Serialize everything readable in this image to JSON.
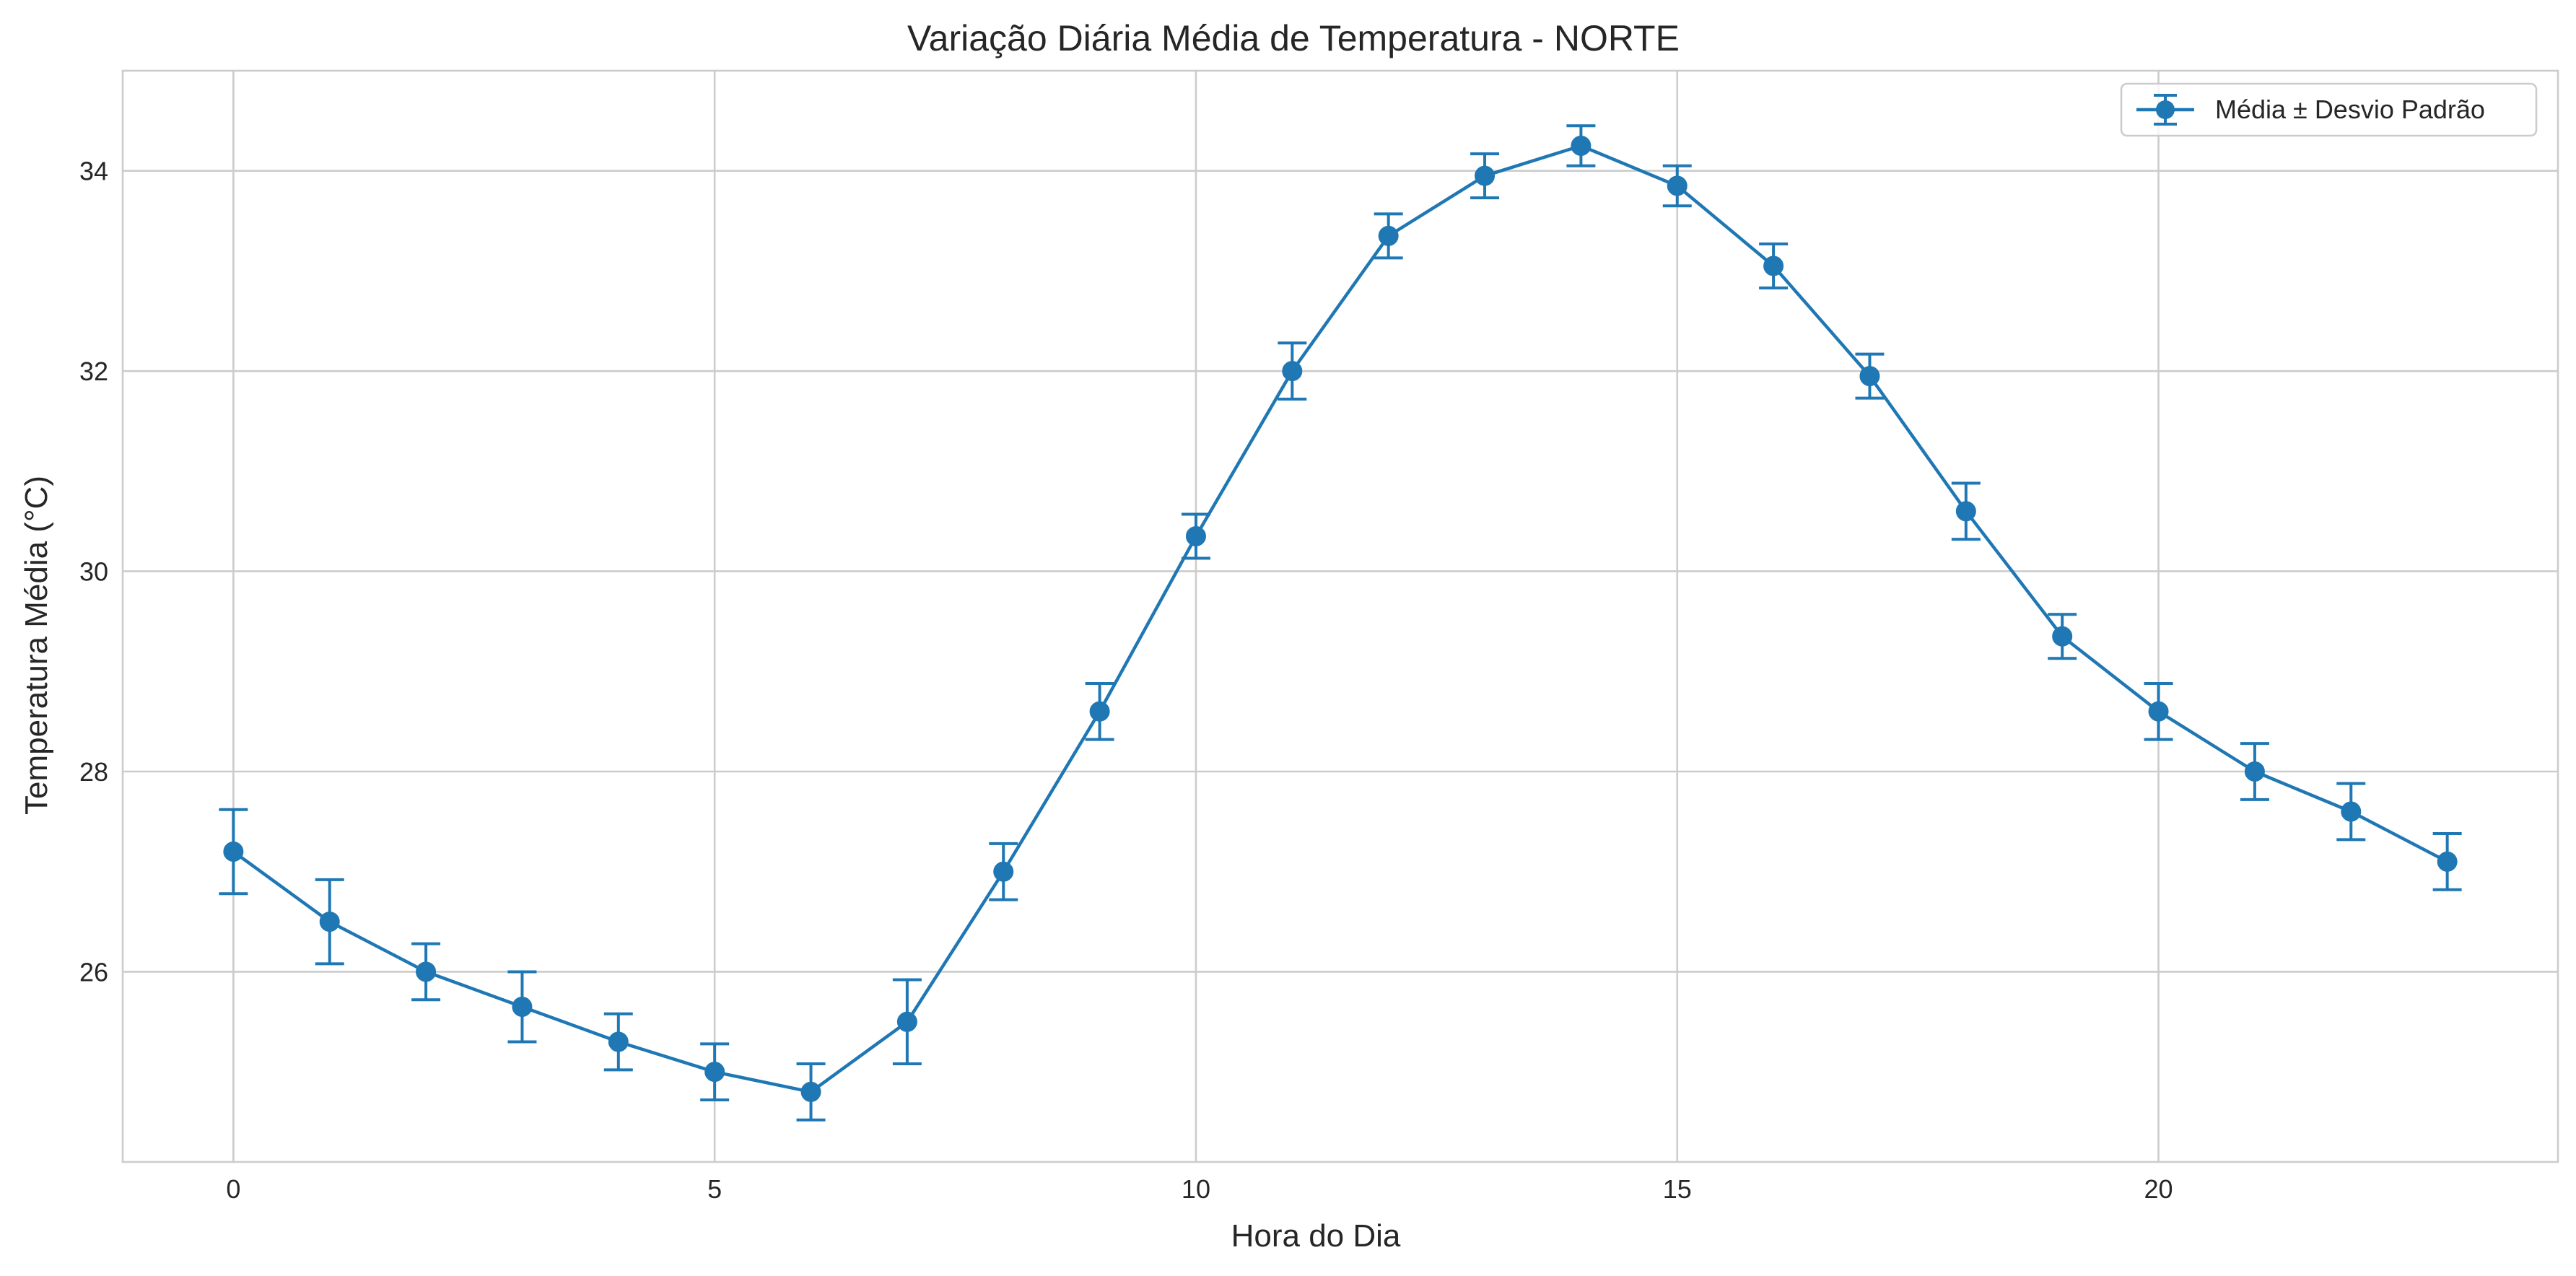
{
  "chart_data": {
    "type": "line",
    "title": "Variação Diária Média de Temperatura - NORTE",
    "xlabel": "Hora do Dia",
    "ylabel": "Temperatura Média (°C)",
    "xlim": [
      -1.15,
      24.15
    ],
    "ylim": [
      24.1,
      35.0
    ],
    "xticks": [
      0,
      5,
      10,
      15,
      20
    ],
    "yticks": [
      26,
      28,
      30,
      32,
      34
    ],
    "grid": true,
    "legend_position": "top-right",
    "series": [
      {
        "name": "Média ± Desvio Padrão",
        "color": "#1f77b4",
        "x": [
          0,
          1,
          2,
          3,
          4,
          5,
          6,
          7,
          8,
          9,
          10,
          11,
          12,
          13,
          14,
          15,
          16,
          17,
          18,
          19,
          20,
          21,
          22,
          23
        ],
        "y": [
          27.2,
          26.5,
          26.0,
          25.65,
          25.3,
          25.0,
          24.8,
          25.5,
          27.0,
          28.6,
          30.35,
          32.0,
          33.35,
          33.95,
          34.25,
          33.85,
          33.05,
          31.95,
          30.6,
          29.35,
          28.6,
          28.0,
          27.6,
          27.1
        ],
        "yerr": [
          0.42,
          0.42,
          0.28,
          0.35,
          0.28,
          0.28,
          0.28,
          0.42,
          0.28,
          0.28,
          0.22,
          0.28,
          0.22,
          0.22,
          0.2,
          0.2,
          0.22,
          0.22,
          0.28,
          0.22,
          0.28,
          0.28,
          0.28,
          0.28
        ]
      }
    ]
  }
}
